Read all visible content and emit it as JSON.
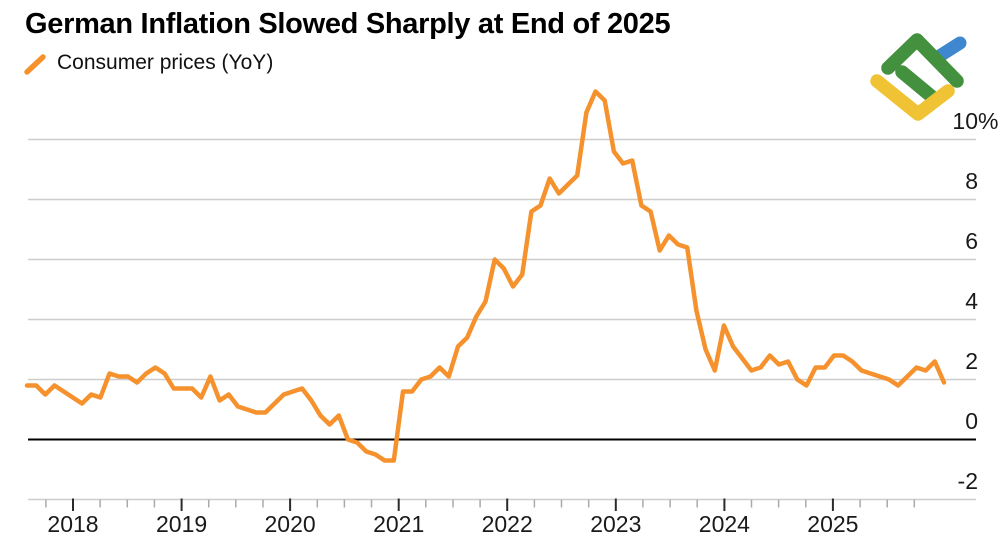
{
  "header": {
    "title": "German Inflation Slowed Sharply at End of 2025",
    "legend_label": "Consumer prices (YoY)"
  },
  "logo": {
    "name": "litefinance-logo",
    "colors": {
      "green": "#43913F",
      "blue": "#3F87CE",
      "yellow": "#EFC334"
    }
  },
  "chart_data": {
    "type": "line",
    "title": "German Inflation Slowed Sharply at End of 2025",
    "legend": {
      "position": "top-left",
      "entries": [
        "Consumer prices (YoY)"
      ]
    },
    "grid": "horizontal",
    "zero_line": true,
    "unit": "%",
    "x_range": [
      "2017-08",
      "2025-12"
    ],
    "ylim": [
      -2.3,
      11.8
    ],
    "x_tick_labels": [
      "2018",
      "2019",
      "2020",
      "2021",
      "2022",
      "2023",
      "2024",
      "2025"
    ],
    "x_minor_tick_months": [
      4,
      7,
      10
    ],
    "y_ticks": [
      {
        "value": 10,
        "label": "10",
        "suffix": "%"
      },
      {
        "value": 8,
        "label": "8",
        "suffix": ""
      },
      {
        "value": 6,
        "label": "6",
        "suffix": ""
      },
      {
        "value": 4,
        "label": "4",
        "suffix": ""
      },
      {
        "value": 2,
        "label": "2",
        "suffix": ""
      },
      {
        "value": 0,
        "label": "0",
        "suffix": ""
      },
      {
        "value": -2,
        "label": "-2",
        "suffix": ""
      }
    ],
    "series": [
      {
        "name": "Consumer prices (YoY)",
        "color": "#F5922E",
        "start": "2017-08",
        "frequency": "monthly",
        "values": [
          1.8,
          1.8,
          1.5,
          1.8,
          1.6,
          1.4,
          1.2,
          1.5,
          1.4,
          2.2,
          2.1,
          2.1,
          1.9,
          2.2,
          2.4,
          2.2,
          1.7,
          1.7,
          1.7,
          1.4,
          2.1,
          1.3,
          1.5,
          1.1,
          1.0,
          0.9,
          0.9,
          1.2,
          1.5,
          1.6,
          1.7,
          1.3,
          0.8,
          0.5,
          0.8,
          0.0,
          -0.1,
          -0.4,
          -0.5,
          -0.7,
          -0.7,
          1.6,
          1.6,
          2.0,
          2.1,
          2.4,
          2.1,
          3.1,
          3.4,
          4.1,
          4.6,
          6.0,
          5.7,
          5.1,
          5.5,
          7.6,
          7.8,
          8.7,
          8.2,
          8.5,
          8.8,
          10.9,
          11.6,
          11.3,
          9.6,
          9.2,
          9.3,
          7.8,
          7.6,
          6.3,
          6.8,
          6.5,
          6.4,
          4.3,
          3.0,
          2.3,
          3.8,
          3.1,
          2.7,
          2.3,
          2.4,
          2.8,
          2.5,
          2.6,
          2.0,
          1.8,
          2.4,
          2.4,
          2.8,
          2.8,
          2.6,
          2.3,
          2.2,
          2.1,
          2.0,
          1.8,
          2.1,
          2.4,
          2.3,
          2.6,
          1.9
        ]
      }
    ]
  }
}
